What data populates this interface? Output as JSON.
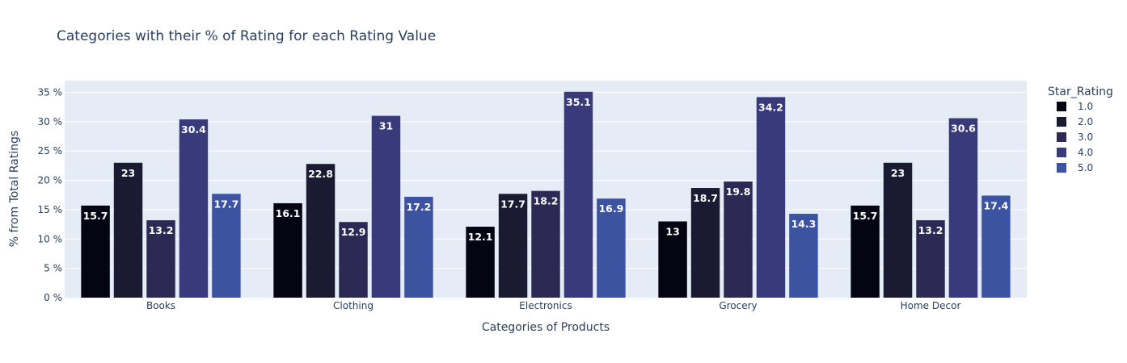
{
  "chart_data": {
    "type": "bar",
    "title": "Categories with their % of Rating for each Rating Value",
    "xlabel": "Categories of Products",
    "ylabel": "% from Total Ratings",
    "categories": [
      "Books",
      "Clothing",
      "Electronics",
      "Grocery",
      "Home Decor"
    ],
    "legend_title": "Star_Rating",
    "legend_position": "right",
    "ylim": [
      0,
      37
    ],
    "yticks": [
      0,
      5,
      10,
      15,
      20,
      25,
      30,
      35
    ],
    "ytick_suffix": " %",
    "grid": true,
    "series": [
      {
        "name": "1.0",
        "color": "#030512",
        "values": [
          15.7,
          16.1,
          12.1,
          13,
          15.7
        ]
      },
      {
        "name": "2.0",
        "color": "#1a1a33",
        "values": [
          23,
          22.8,
          17.7,
          18.7,
          23
        ]
      },
      {
        "name": "3.0",
        "color": "#2c2a55",
        "values": [
          13.2,
          12.9,
          18.2,
          19.8,
          13.2
        ]
      },
      {
        "name": "4.0",
        "color": "#393a79",
        "values": [
          30.4,
          31,
          35.1,
          34.2,
          30.6
        ]
      },
      {
        "name": "5.0",
        "color": "#3c53a1",
        "values": [
          17.7,
          17.2,
          16.9,
          14.3,
          17.4
        ]
      }
    ],
    "colors": {
      "plot_bg": "#e5ecf6",
      "grid": "#ffffff",
      "text": "#2a3f5f"
    }
  }
}
